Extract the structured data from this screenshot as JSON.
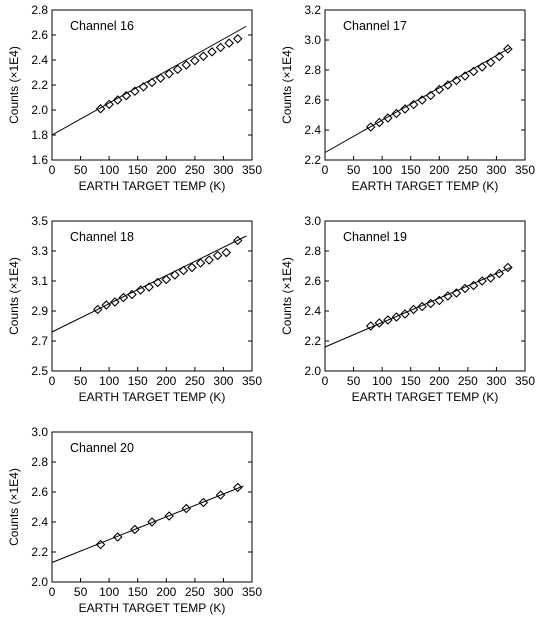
{
  "chart_data": [
    {
      "type": "scatter",
      "title": "Channel 16",
      "xlabel": "EARTH TARGET TEMP (K)",
      "ylabel": "Counts (×1E4)",
      "xlim": [
        0,
        350
      ],
      "ylim": [
        1.6,
        2.8
      ],
      "xticks": [
        "0",
        "50",
        "100",
        "150",
        "200",
        "250",
        "300",
        "350"
      ],
      "yticks": [
        "1.6",
        "1.8",
        "2.0",
        "2.2",
        "2.4",
        "2.6",
        "2.8"
      ],
      "grid": false,
      "marker": "diamond",
      "x": [
        85,
        100,
        115,
        130,
        145,
        160,
        175,
        190,
        205,
        220,
        235,
        250,
        265,
        280,
        295,
        310,
        325
      ],
      "y": [
        2.01,
        2.045,
        2.08,
        2.115,
        2.15,
        2.185,
        2.22,
        2.255,
        2.29,
        2.325,
        2.36,
        2.395,
        2.43,
        2.465,
        2.5,
        2.535,
        2.57
      ],
      "fit_line": {
        "x": [
          0,
          340
        ],
        "y": [
          1.8,
          2.67
        ]
      }
    },
    {
      "type": "scatter",
      "title": "Channel 17",
      "xlabel": "EARTH TARGET TEMP (K)",
      "ylabel": "Counts (×1E4)",
      "xlim": [
        0,
        350
      ],
      "ylim": [
        2.2,
        3.2
      ],
      "xticks": [
        "0",
        "50",
        "100",
        "150",
        "200",
        "250",
        "300",
        "350"
      ],
      "yticks": [
        "2.2",
        "2.4",
        "2.6",
        "2.8",
        "3.0",
        "3.2"
      ],
      "grid": false,
      "marker": "diamond",
      "x": [
        80,
        95,
        110,
        125,
        140,
        155,
        170,
        185,
        200,
        215,
        230,
        245,
        260,
        275,
        290,
        305,
        320
      ],
      "y": [
        2.42,
        2.45,
        2.48,
        2.51,
        2.54,
        2.57,
        2.6,
        2.63,
        2.67,
        2.7,
        2.73,
        2.76,
        2.79,
        2.82,
        2.85,
        2.89,
        2.94
      ],
      "fit_line": {
        "x": [
          0,
          325
        ],
        "y": [
          2.25,
          2.95
        ]
      }
    },
    {
      "type": "scatter",
      "title": "Channel 18",
      "xlabel": "EARTH TARGET TEMP (K)",
      "ylabel": "Counts (×1E4)",
      "xlim": [
        0,
        350
      ],
      "ylim": [
        2.5,
        3.5
      ],
      "xticks": [
        "0",
        "50",
        "100",
        "150",
        "200",
        "250",
        "300",
        "350"
      ],
      "yticks": [
        "2.5",
        "2.7",
        "2.9",
        "3.1",
        "3.3",
        "3.5"
      ],
      "grid": false,
      "marker": "diamond",
      "x": [
        80,
        95,
        110,
        125,
        140,
        155,
        170,
        185,
        200,
        215,
        230,
        245,
        260,
        275,
        290,
        305,
        325
      ],
      "y": [
        2.91,
        2.94,
        2.96,
        2.99,
        3.01,
        3.04,
        3.06,
        3.09,
        3.11,
        3.14,
        3.17,
        3.19,
        3.22,
        3.24,
        3.27,
        3.29,
        3.37
      ],
      "fit_line": {
        "x": [
          0,
          340
        ],
        "y": [
          2.76,
          3.4
        ]
      }
    },
    {
      "type": "scatter",
      "title": "Channel 19",
      "xlabel": "EARTH TARGET TEMP (K)",
      "ylabel": "Counts (×1E4)",
      "xlim": [
        0,
        350
      ],
      "ylim": [
        2.0,
        3.0
      ],
      "xticks": [
        "0",
        "50",
        "100",
        "150",
        "200",
        "250",
        "300",
        "350"
      ],
      "yticks": [
        "2.0",
        "2.2",
        "2.4",
        "2.6",
        "2.8",
        "3.0"
      ],
      "grid": false,
      "marker": "diamond",
      "x": [
        80,
        95,
        110,
        125,
        140,
        155,
        170,
        185,
        200,
        215,
        230,
        245,
        260,
        275,
        290,
        305,
        320
      ],
      "y": [
        2.3,
        2.32,
        2.34,
        2.36,
        2.38,
        2.41,
        2.43,
        2.45,
        2.47,
        2.5,
        2.52,
        2.55,
        2.57,
        2.6,
        2.62,
        2.65,
        2.69
      ],
      "fit_line": {
        "x": [
          0,
          325
        ],
        "y": [
          2.16,
          2.69
        ]
      }
    },
    {
      "type": "scatter",
      "title": "Channel 20",
      "xlabel": "EARTH TARGET TEMP (K)",
      "ylabel": "Counts (×1E4)",
      "xlim": [
        0,
        350
      ],
      "ylim": [
        2.0,
        3.0
      ],
      "xticks": [
        "0",
        "50",
        "100",
        "150",
        "200",
        "250",
        "300",
        "350"
      ],
      "yticks": [
        "2.0",
        "2.2",
        "2.4",
        "2.6",
        "2.8",
        "3.0"
      ],
      "grid": false,
      "marker": "diamond",
      "x": [
        85,
        115,
        145,
        175,
        205,
        235,
        265,
        295,
        325
      ],
      "y": [
        2.25,
        2.3,
        2.35,
        2.4,
        2.44,
        2.49,
        2.53,
        2.58,
        2.63
      ],
      "fit_line": {
        "x": [
          0,
          335
        ],
        "y": [
          2.13,
          2.64
        ]
      }
    }
  ]
}
